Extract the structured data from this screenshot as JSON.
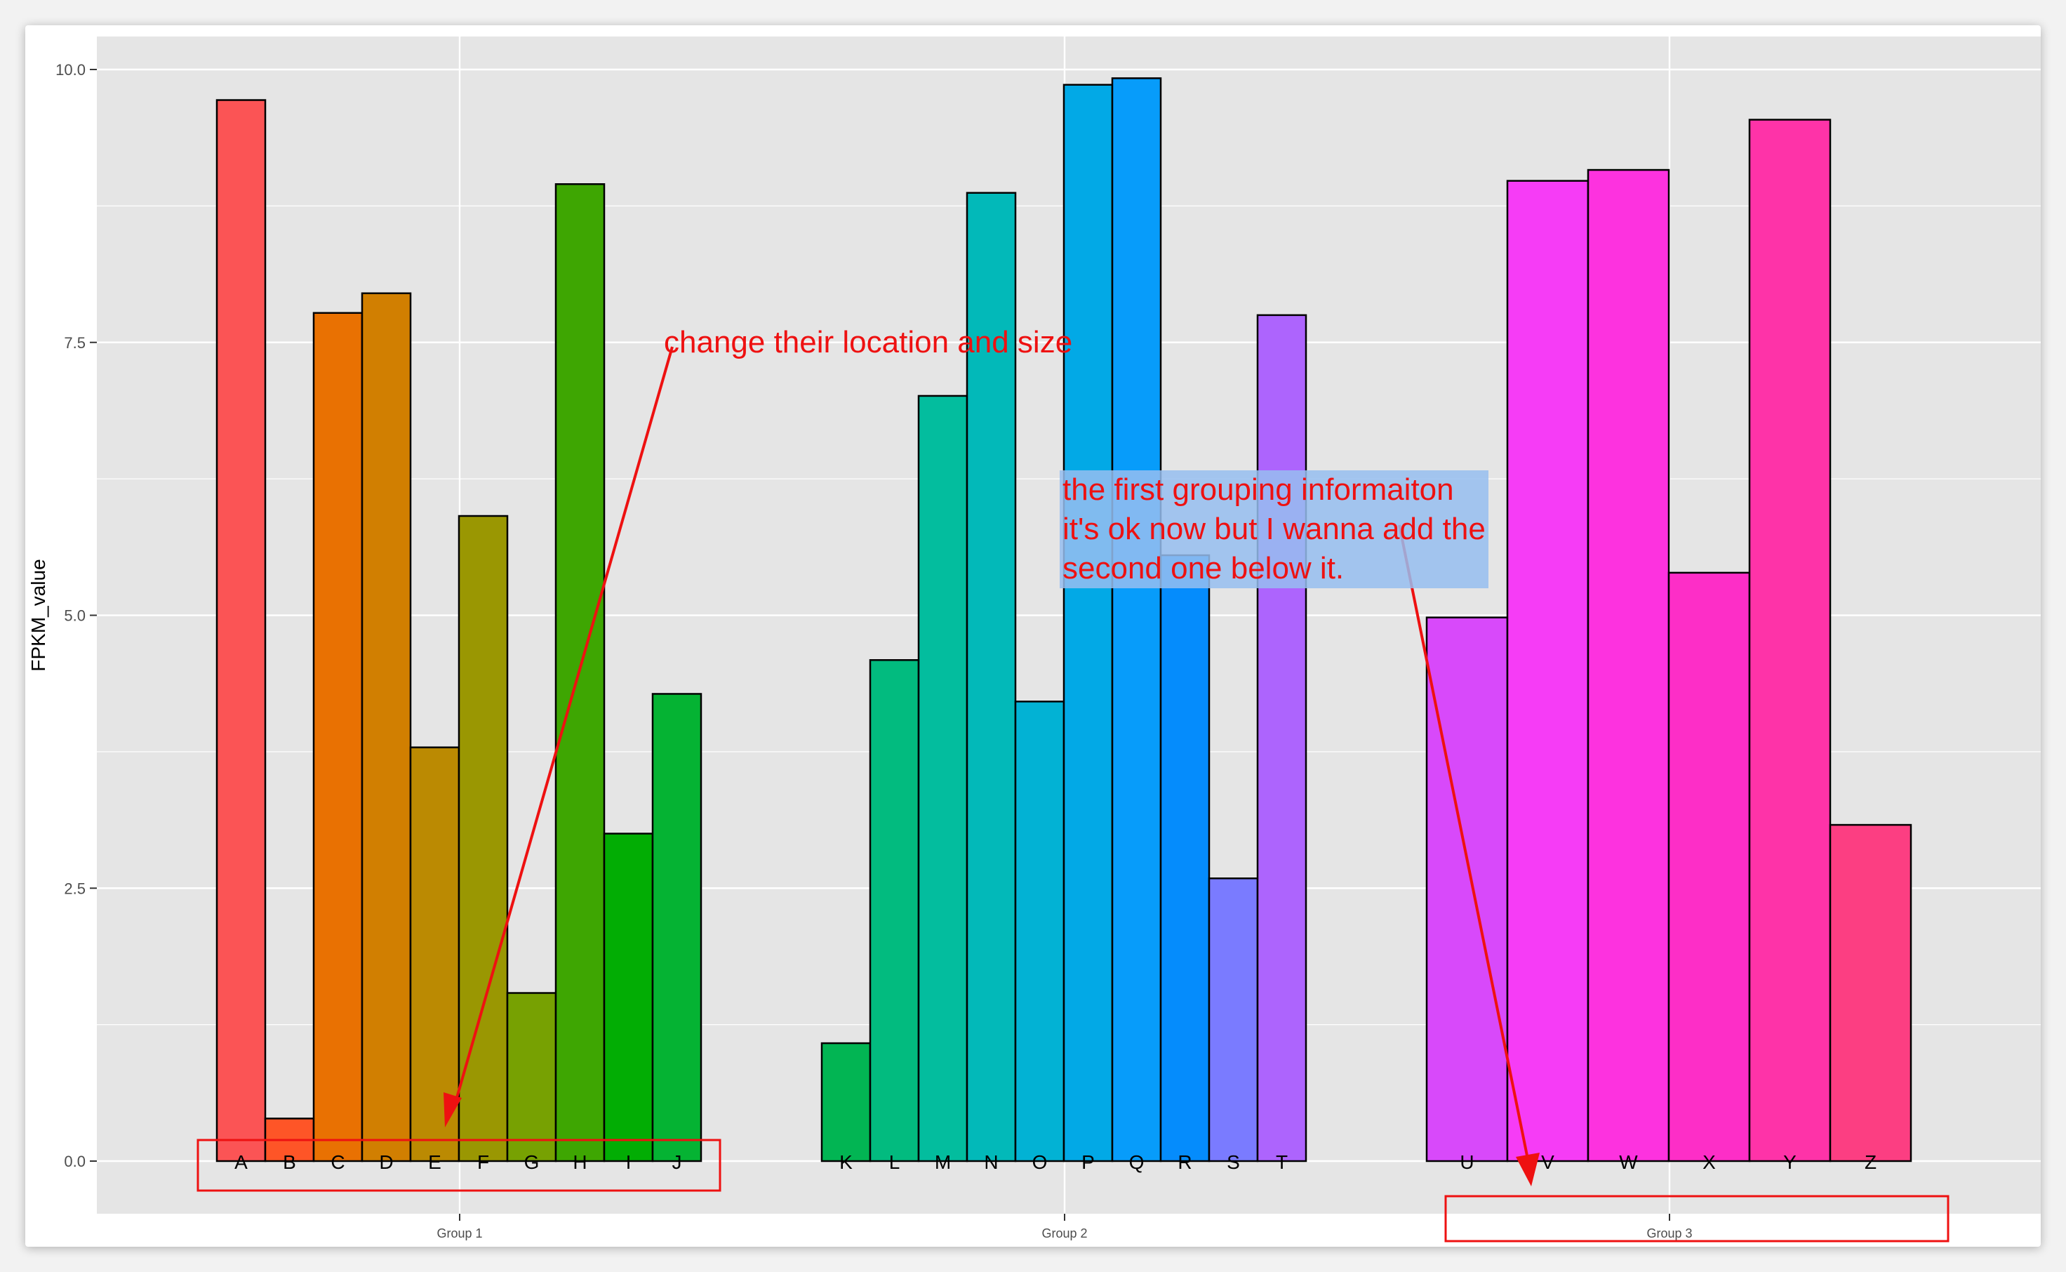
{
  "chart_data": {
    "type": "bar",
    "ylabel": "FPKM_value",
    "xlabel": "",
    "ylim": [
      -0.5,
      10.4
    ],
    "yticks": [
      0.0,
      2.5,
      5.0,
      7.5,
      10.0
    ],
    "ytick_labels": [
      "0.0",
      "2.5",
      "5.0",
      "7.5",
      "10.0"
    ],
    "grid": true,
    "groups": [
      {
        "name": "Group 1",
        "categories": [
          "A",
          "B",
          "C",
          "D",
          "E",
          "F",
          "G",
          "H",
          "I",
          "J"
        ],
        "values": [
          9.72,
          0.39,
          7.77,
          7.95,
          3.79,
          5.91,
          1.54,
          8.95,
          3.0,
          4.28
        ],
        "colors": [
          "#fb5455",
          "#fe5527",
          "#e97102",
          "#d17f01",
          "#bb8a02",
          "#9a9702",
          "#77a102",
          "#3ea602",
          "#02ad04",
          "#05b333"
        ]
      },
      {
        "name": "Group 2",
        "categories": [
          "K",
          "L",
          "M",
          "N",
          "O",
          "P",
          "Q",
          "R",
          "S",
          "T"
        ],
        "values": [
          1.08,
          4.59,
          7.01,
          8.87,
          4.21,
          9.86,
          9.92,
          5.55,
          2.59,
          7.75
        ],
        "colors": [
          "#02b553",
          "#02bb7f",
          "#03bd9e",
          "#02b9b9",
          "#02b2d4",
          "#02a9e6",
          "#079cfa",
          "#058cfc",
          "#7a7bff",
          "#ad64fd"
        ]
      },
      {
        "name": "Group 3",
        "categories": [
          "U",
          "V",
          "W",
          "X",
          "Y",
          "Z"
        ],
        "values": [
          4.98,
          8.98,
          9.08,
          5.39,
          9.54,
          3.08
        ],
        "colors": [
          "#d849fa",
          "#f63cf6",
          "#fd32df",
          "#fd2ec7",
          "#fe33a8",
          "#fc3e82"
        ]
      }
    ]
  },
  "annotations": {
    "note1": "change their location and size",
    "note2_lines": [
      "the first grouping informaiton",
      "it's ok now but I wanna add the",
      "second one below it."
    ]
  },
  "colors": {
    "panel_bg": "#e5e5e5",
    "grid": "#ffffff",
    "annotation": "#ee1111",
    "highlight": "#a6c8f2"
  }
}
